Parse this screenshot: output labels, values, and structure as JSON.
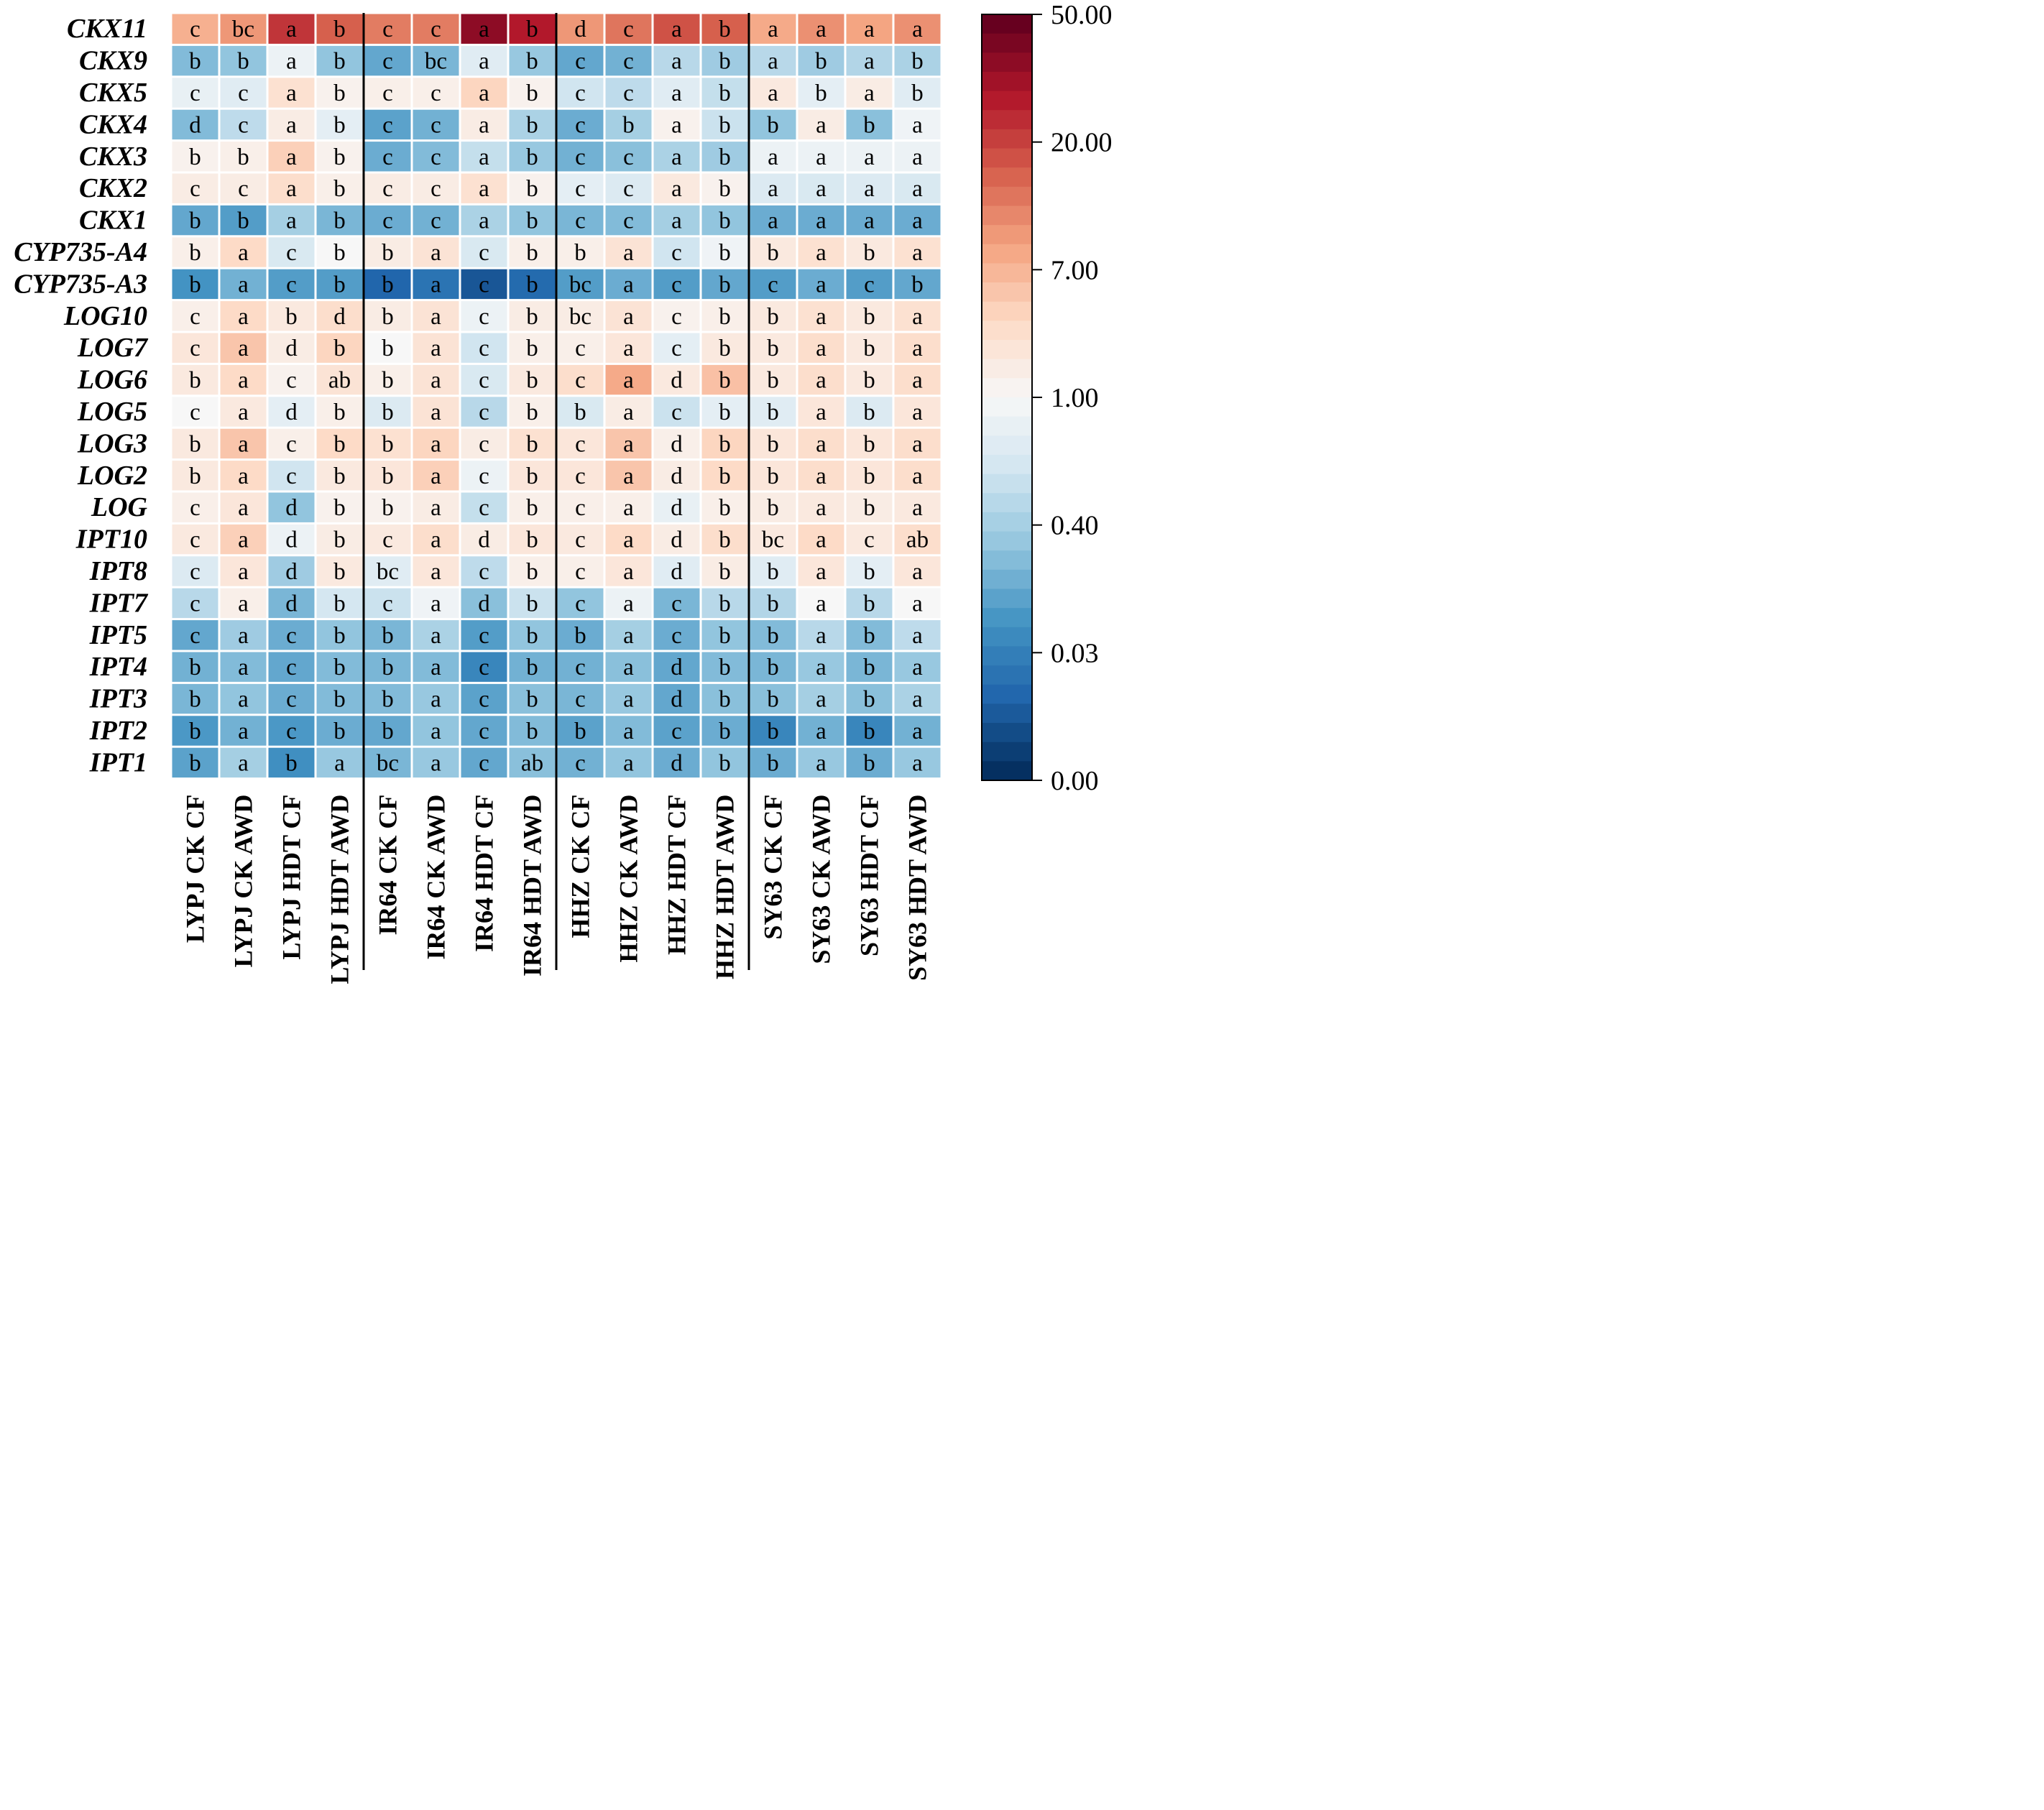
{
  "chart_data": {
    "type": "heatmap",
    "title": "",
    "rows": [
      "CKX11",
      "CKX9",
      "CKX5",
      "CKX4",
      "CKX3",
      "CKX2",
      "CKX1",
      "CYP735-A4",
      "CYP735-A3",
      "LOG10",
      "LOG7",
      "LOG6",
      "LOG5",
      "LOG3",
      "LOG2",
      "LOG",
      "IPT10",
      "IPT8",
      "IPT7",
      "IPT5",
      "IPT4",
      "IPT3",
      "IPT2",
      "IPT1"
    ],
    "columns": [
      "LYPJ CK CF",
      "LYPJ CK AWD",
      "LYPJ HDT CF",
      "LYPJ HDT AWD",
      "IR64 CK CF",
      "IR64 CK AWD",
      "IR64 HDT CF",
      "IR64 HDT AWD",
      "HHZ CK CF",
      "HHZ CK AWD",
      "HHZ HDT CF",
      "HHZ HDT AWD",
      "SY63 CK CF",
      "SY63 CK AWD",
      "SY63 HDT CF",
      "SY63 HDT AWD"
    ],
    "group_separators_after_column": [
      4,
      8,
      12
    ],
    "values": [
      [
        0.68,
        0.72,
        0.86,
        0.8,
        0.76,
        0.76,
        0.95,
        0.9,
        0.72,
        0.77,
        0.82,
        0.8,
        0.69,
        0.73,
        0.7,
        0.73
      ],
      [
        0.28,
        0.3,
        0.47,
        0.3,
        0.24,
        0.27,
        0.44,
        0.31,
        0.24,
        0.26,
        0.36,
        0.32,
        0.36,
        0.32,
        0.35,
        0.34
      ],
      [
        0.46,
        0.44,
        0.58,
        0.52,
        0.53,
        0.53,
        0.61,
        0.52,
        0.4,
        0.37,
        0.44,
        0.38,
        0.55,
        0.45,
        0.54,
        0.44
      ],
      [
        0.28,
        0.37,
        0.54,
        0.45,
        0.23,
        0.26,
        0.54,
        0.34,
        0.25,
        0.33,
        0.52,
        0.39,
        0.3,
        0.54,
        0.29,
        0.48
      ],
      [
        0.52,
        0.53,
        0.62,
        0.52,
        0.25,
        0.28,
        0.38,
        0.31,
        0.26,
        0.29,
        0.34,
        0.32,
        0.47,
        0.47,
        0.47,
        0.47
      ],
      [
        0.54,
        0.54,
        0.59,
        0.53,
        0.54,
        0.54,
        0.58,
        0.52,
        0.45,
        0.43,
        0.55,
        0.52,
        0.43,
        0.42,
        0.43,
        0.42
      ],
      [
        0.24,
        0.22,
        0.33,
        0.27,
        0.25,
        0.26,
        0.34,
        0.3,
        0.27,
        0.28,
        0.33,
        0.3,
        0.25,
        0.25,
        0.25,
        0.25
      ],
      [
        0.53,
        0.6,
        0.42,
        0.5,
        0.54,
        0.57,
        0.42,
        0.53,
        0.53,
        0.57,
        0.4,
        0.48,
        0.55,
        0.58,
        0.55,
        0.58
      ],
      [
        0.2,
        0.26,
        0.22,
        0.22,
        0.1,
        0.13,
        0.07,
        0.11,
        0.22,
        0.25,
        0.22,
        0.24,
        0.22,
        0.25,
        0.22,
        0.24
      ],
      [
        0.53,
        0.6,
        0.55,
        0.59,
        0.54,
        0.57,
        0.47,
        0.54,
        0.54,
        0.57,
        0.52,
        0.53,
        0.55,
        0.58,
        0.55,
        0.58
      ],
      [
        0.56,
        0.64,
        0.54,
        0.61,
        0.5,
        0.57,
        0.4,
        0.53,
        0.53,
        0.56,
        0.45,
        0.55,
        0.55,
        0.59,
        0.55,
        0.59
      ],
      [
        0.55,
        0.6,
        0.52,
        0.57,
        0.53,
        0.57,
        0.42,
        0.55,
        0.59,
        0.69,
        0.55,
        0.65,
        0.55,
        0.59,
        0.55,
        0.59
      ],
      [
        0.5,
        0.55,
        0.45,
        0.53,
        0.43,
        0.57,
        0.36,
        0.53,
        0.42,
        0.54,
        0.39,
        0.45,
        0.44,
        0.56,
        0.43,
        0.56
      ],
      [
        0.55,
        0.64,
        0.53,
        0.6,
        0.58,
        0.61,
        0.54,
        0.58,
        0.56,
        0.64,
        0.53,
        0.61,
        0.56,
        0.59,
        0.56,
        0.59
      ],
      [
        0.55,
        0.6,
        0.4,
        0.55,
        0.56,
        0.62,
        0.47,
        0.56,
        0.56,
        0.64,
        0.54,
        0.6,
        0.56,
        0.59,
        0.56,
        0.59
      ],
      [
        0.53,
        0.56,
        0.3,
        0.52,
        0.52,
        0.54,
        0.38,
        0.53,
        0.53,
        0.53,
        0.46,
        0.53,
        0.54,
        0.55,
        0.54,
        0.55
      ],
      [
        0.55,
        0.62,
        0.47,
        0.54,
        0.55,
        0.59,
        0.54,
        0.56,
        0.55,
        0.6,
        0.54,
        0.59,
        0.55,
        0.6,
        0.55,
        0.59
      ],
      [
        0.43,
        0.56,
        0.32,
        0.55,
        0.44,
        0.56,
        0.37,
        0.53,
        0.53,
        0.56,
        0.44,
        0.54,
        0.44,
        0.56,
        0.45,
        0.56
      ],
      [
        0.36,
        0.53,
        0.27,
        0.41,
        0.39,
        0.48,
        0.29,
        0.39,
        0.3,
        0.47,
        0.27,
        0.36,
        0.35,
        0.5,
        0.36,
        0.5
      ],
      [
        0.24,
        0.32,
        0.25,
        0.3,
        0.27,
        0.34,
        0.22,
        0.3,
        0.25,
        0.33,
        0.25,
        0.3,
        0.28,
        0.36,
        0.28,
        0.37
      ],
      [
        0.26,
        0.28,
        0.24,
        0.28,
        0.27,
        0.28,
        0.17,
        0.26,
        0.26,
        0.29,
        0.24,
        0.28,
        0.27,
        0.31,
        0.27,
        0.31
      ],
      [
        0.27,
        0.3,
        0.25,
        0.28,
        0.28,
        0.31,
        0.23,
        0.29,
        0.27,
        0.31,
        0.24,
        0.29,
        0.29,
        0.33,
        0.29,
        0.34
      ],
      [
        0.21,
        0.26,
        0.21,
        0.25,
        0.24,
        0.3,
        0.24,
        0.28,
        0.23,
        0.28,
        0.23,
        0.25,
        0.17,
        0.26,
        0.17,
        0.26
      ],
      [
        0.23,
        0.33,
        0.19,
        0.31,
        0.27,
        0.31,
        0.24,
        0.29,
        0.26,
        0.3,
        0.25,
        0.3,
        0.25,
        0.31,
        0.25,
        0.31
      ]
    ],
    "letters": [
      [
        "c",
        "bc",
        "a",
        "b",
        "c",
        "c",
        "a",
        "b",
        "d",
        "c",
        "a",
        "b",
        "a",
        "a",
        "a",
        "a"
      ],
      [
        "b",
        "b",
        "a",
        "b",
        "c",
        "bc",
        "a",
        "b",
        "c",
        "c",
        "a",
        "b",
        "a",
        "b",
        "a",
        "b"
      ],
      [
        "c",
        "c",
        "a",
        "b",
        "c",
        "c",
        "a",
        "b",
        "c",
        "c",
        "a",
        "b",
        "a",
        "b",
        "a",
        "b"
      ],
      [
        "d",
        "c",
        "a",
        "b",
        "c",
        "c",
        "a",
        "b",
        "c",
        "b",
        "a",
        "b",
        "b",
        "a",
        "b",
        "a"
      ],
      [
        "b",
        "b",
        "a",
        "b",
        "c",
        "c",
        "a",
        "b",
        "c",
        "c",
        "a",
        "b",
        "a",
        "a",
        "a",
        "a"
      ],
      [
        "c",
        "c",
        "a",
        "b",
        "c",
        "c",
        "a",
        "b",
        "c",
        "c",
        "a",
        "b",
        "a",
        "a",
        "a",
        "a"
      ],
      [
        "b",
        "b",
        "a",
        "b",
        "c",
        "c",
        "a",
        "b",
        "c",
        "c",
        "a",
        "b",
        "a",
        "a",
        "a",
        "a"
      ],
      [
        "b",
        "a",
        "c",
        "b",
        "b",
        "a",
        "c",
        "b",
        "b",
        "a",
        "c",
        "b",
        "b",
        "a",
        "b",
        "a"
      ],
      [
        "b",
        "a",
        "c",
        "b",
        "b",
        "a",
        "c",
        "b",
        "bc",
        "a",
        "c",
        "b",
        "c",
        "a",
        "c",
        "b"
      ],
      [
        "c",
        "a",
        "b",
        "d",
        "b",
        "a",
        "c",
        "b",
        "bc",
        "a",
        "c",
        "b",
        "b",
        "a",
        "b",
        "a"
      ],
      [
        "c",
        "a",
        "d",
        "b",
        "b",
        "a",
        "c",
        "b",
        "c",
        "a",
        "c",
        "b",
        "b",
        "a",
        "b",
        "a"
      ],
      [
        "b",
        "a",
        "c",
        "ab",
        "b",
        "a",
        "c",
        "b",
        "c",
        "a",
        "d",
        "b",
        "b",
        "a",
        "b",
        "a"
      ],
      [
        "c",
        "a",
        "d",
        "b",
        "b",
        "a",
        "c",
        "b",
        "b",
        "a",
        "c",
        "b",
        "b",
        "a",
        "b",
        "a"
      ],
      [
        "b",
        "a",
        "c",
        "b",
        "b",
        "a",
        "c",
        "b",
        "c",
        "a",
        "d",
        "b",
        "b",
        "a",
        "b",
        "a"
      ],
      [
        "b",
        "a",
        "c",
        "b",
        "b",
        "a",
        "c",
        "b",
        "c",
        "a",
        "d",
        "b",
        "b",
        "a",
        "b",
        "a"
      ],
      [
        "c",
        "a",
        "d",
        "b",
        "b",
        "a",
        "c",
        "b",
        "c",
        "a",
        "d",
        "b",
        "b",
        "a",
        "b",
        "a"
      ],
      [
        "c",
        "a",
        "d",
        "b",
        "c",
        "a",
        "d",
        "b",
        "c",
        "a",
        "d",
        "b",
        "bc",
        "a",
        "c",
        "ab"
      ],
      [
        "c",
        "a",
        "d",
        "b",
        "bc",
        "a",
        "c",
        "b",
        "c",
        "a",
        "d",
        "b",
        "b",
        "a",
        "b",
        "a"
      ],
      [
        "c",
        "a",
        "d",
        "b",
        "c",
        "a",
        "d",
        "b",
        "c",
        "a",
        "c",
        "b",
        "b",
        "a",
        "b",
        "a"
      ],
      [
        "c",
        "a",
        "c",
        "b",
        "b",
        "a",
        "c",
        "b",
        "b",
        "a",
        "c",
        "b",
        "b",
        "a",
        "b",
        "a"
      ],
      [
        "b",
        "a",
        "c",
        "b",
        "b",
        "a",
        "c",
        "b",
        "c",
        "a",
        "d",
        "b",
        "b",
        "a",
        "b",
        "a"
      ],
      [
        "b",
        "a",
        "c",
        "b",
        "b",
        "a",
        "c",
        "b",
        "c",
        "a",
        "d",
        "b",
        "b",
        "a",
        "b",
        "a"
      ],
      [
        "b",
        "a",
        "c",
        "b",
        "b",
        "a",
        "c",
        "b",
        "b",
        "a",
        "c",
        "b",
        "b",
        "a",
        "b",
        "a"
      ],
      [
        "b",
        "a",
        "b",
        "a",
        "bc",
        "a",
        "c",
        "ab",
        "c",
        "a",
        "d",
        "b",
        "b",
        "a",
        "b",
        "a"
      ]
    ],
    "colorbar": {
      "ticks": [
        "50.00",
        "20.00",
        "7.00",
        "1.00",
        "0.40",
        "0.03",
        "0.00"
      ],
      "colors": [
        "#67001f",
        "#b2182b",
        "#d6604d",
        "#f4a582",
        "#fddbc7",
        "#f7f7f7",
        "#d1e5f0",
        "#92c5de",
        "#4393c3",
        "#2166ac",
        "#053061"
      ]
    }
  }
}
